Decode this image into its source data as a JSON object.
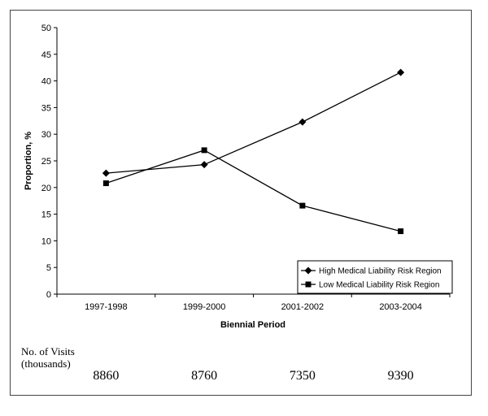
{
  "chart_data": {
    "type": "line",
    "title": "",
    "xlabel": "Biennial Period",
    "ylabel": "Proportion, %",
    "categories": [
      "1997-1998",
      "1999-2000",
      "2001-2002",
      "2003-2004"
    ],
    "ylim": [
      0,
      50
    ],
    "yticks": [
      0,
      5,
      10,
      15,
      20,
      25,
      30,
      35,
      40,
      45,
      50
    ],
    "grid": false,
    "legend_position": "bottom-right",
    "series": [
      {
        "name": "High Medical Liability Risk Region",
        "marker": "diamond",
        "values": [
          22.7,
          24.3,
          32.3,
          41.6
        ]
      },
      {
        "name": "Low Medical Liability Risk Region",
        "marker": "square",
        "values": [
          20.8,
          27.0,
          16.6,
          11.8
        ]
      }
    ]
  },
  "visits": {
    "label_line1": "No. of Visits",
    "label_line2": "(thousands)",
    "values": [
      "8860",
      "8760",
      "7350",
      "9390"
    ]
  }
}
